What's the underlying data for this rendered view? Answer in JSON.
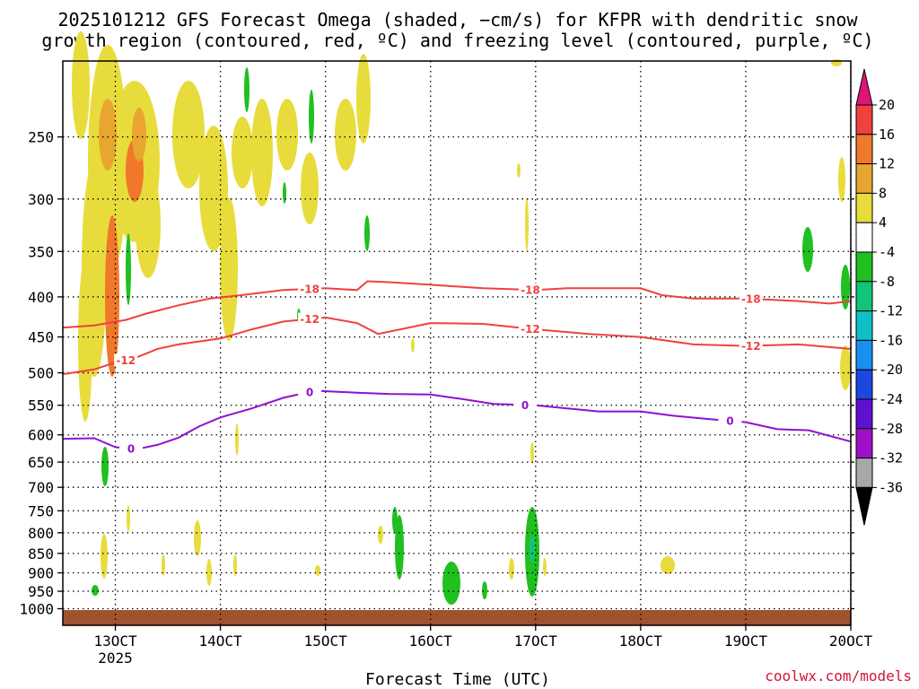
{
  "title_lines": [
    "2025101212 GFS Forecast Omega (shaded, −cm/s) for KFPR with dendritic snow",
    "growth region (contoured, red, ºC) and freezing level (contoured, purple, ºC)"
  ],
  "credit": "coolwx.com/models",
  "colors": {
    "dgz": "#f04040",
    "freezing": "#9010d0",
    "ground": "#a0522d",
    "grid": "#000000"
  },
  "chart_data": {
    "type": "heatmap",
    "title": "2025101212 GFS Forecast Omega (shaded, −cm/s) for KFPR with dendritic snow growth region (contoured, red, ºC) and freezing level (contoured, purple, ºC)",
    "xlabel": "Forecast Time (UTC)",
    "ylabel": "",
    "x_start_day": 12.5,
    "x_end_day": 20.0,
    "xlim": [
      "12OCT 12Z",
      "20OCT 00Z"
    ],
    "xtick_labels": [
      "13OCT",
      "14OCT",
      "15OCT",
      "16OCT",
      "17OCT",
      "18OCT",
      "19OCT",
      "20OCT"
    ],
    "xtick_days": [
      13,
      14,
      15,
      16,
      17,
      18,
      19,
      20
    ],
    "x_year_label": "2025",
    "y_scale": "log-pressure",
    "ylim": [
      1050,
      200
    ],
    "ytick_labels": [
      "250",
      "300",
      "350",
      "400",
      "450",
      "500",
      "550",
      "600",
      "650",
      "700",
      "750",
      "800",
      "850",
      "900",
      "950",
      "1000"
    ],
    "ytick_values": [
      250,
      300,
      350,
      400,
      450,
      500,
      550,
      600,
      650,
      700,
      750,
      800,
      850,
      900,
      950,
      1000
    ],
    "grid": true,
    "colorbar": {
      "labels": [
        "20",
        "16",
        "12",
        "8",
        "4",
        "-4",
        "-8",
        "-12",
        "-16",
        "-20",
        "-24",
        "-28",
        "-32",
        "-36"
      ],
      "colors": [
        "#f04040",
        "#f0782a",
        "#e8a630",
        "#e8dc3c",
        "#ffffff",
        "#20c020",
        "#10c47a",
        "#10c0c8",
        "#1890f0",
        "#1e46e0",
        "#6010d0",
        "#a010c8",
        "#a8a8a8"
      ],
      "top_arrow_color": "#e0147a",
      "bottom_arrow_color": "#000000"
    },
    "series": [
      {
        "name": "-18",
        "color": "#f04040",
        "label_days": [
          14.85,
          16.95,
          19.05
        ],
        "x": [
          12.5,
          12.8,
          13.1,
          13.3,
          13.6,
          13.9,
          14.2,
          14.6,
          15.0,
          15.3,
          15.4,
          15.6,
          16.0,
          16.5,
          17.0,
          17.3,
          17.7,
          18.0,
          18.2,
          18.5,
          19.0,
          19.5,
          19.8,
          20.0
        ],
        "y": [
          438,
          435,
          428,
          420,
          410,
          402,
          398,
          392,
          390,
          392,
          382,
          383,
          386,
          390,
          392,
          390,
          390,
          390,
          398,
          402,
          402,
          405,
          408,
          405
        ]
      },
      {
        "name": "-12",
        "color": "#f04040",
        "label_days": [
          13.1,
          14.85,
          16.95,
          19.05
        ],
        "x": [
          12.5,
          12.8,
          13.0,
          13.2,
          13.4,
          13.6,
          14.0,
          14.3,
          14.6,
          15.0,
          15.3,
          15.5,
          16.0,
          16.5,
          17.0,
          17.5,
          18.0,
          18.5,
          19.0,
          19.5,
          20.0
        ],
        "y": [
          502,
          495,
          485,
          478,
          466,
          460,
          452,
          440,
          430,
          425,
          432,
          446,
          432,
          433,
          440,
          446,
          450,
          460,
          462,
          460,
          466
        ]
      },
      {
        "name": "0",
        "color": "#9010d0",
        "label_days": [
          13.15,
          14.85,
          16.9,
          18.85
        ],
        "x": [
          12.5,
          12.8,
          13.0,
          13.2,
          13.4,
          13.6,
          13.8,
          14.0,
          14.3,
          14.6,
          14.9,
          15.3,
          15.6,
          16.0,
          16.3,
          16.6,
          17.0,
          17.3,
          17.6,
          18.0,
          18.3,
          18.6,
          19.0,
          19.3,
          19.6,
          20.0
        ],
        "y": [
          607,
          606,
          622,
          626,
          618,
          605,
          585,
          570,
          555,
          538,
          527,
          530,
          532,
          533,
          540,
          548,
          550,
          555,
          560,
          560,
          567,
          572,
          578,
          590,
          592,
          612
        ]
      }
    ],
    "contour_labels": [
      "-18",
      "-12",
      "0"
    ]
  }
}
